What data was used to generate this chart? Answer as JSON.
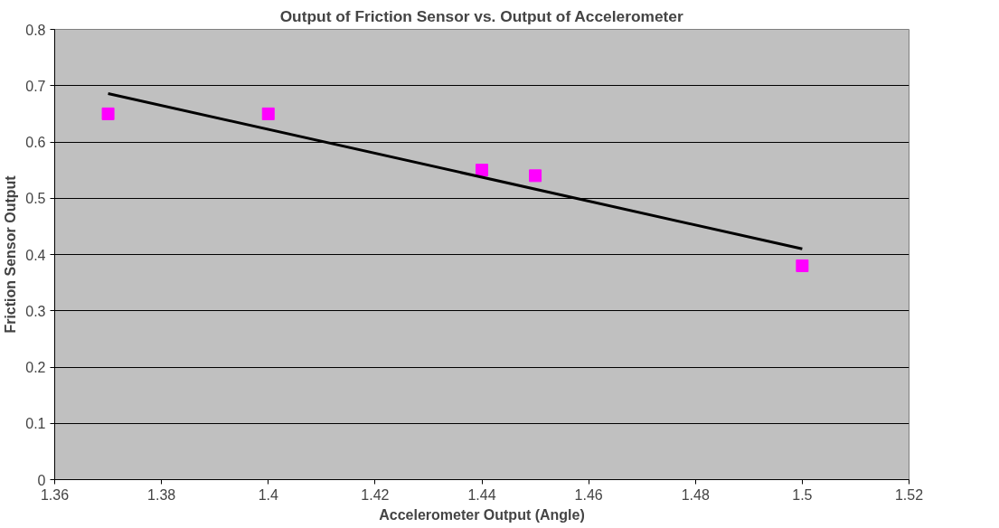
{
  "chart_data": {
    "type": "scatter",
    "title": "Output of Friction Sensor vs. Output of Accelerometer",
    "xlabel": "Accelerometer Output (Angle)",
    "ylabel": "Friction Sensor Output",
    "series": [
      {
        "color": "#ff00ff",
        "marker": "square",
        "x": [
          1.37,
          1.4,
          1.44,
          1.45,
          1.5
        ],
        "values": [
          0.65,
          0.65,
          0.55,
          0.54,
          0.38
        ]
      },
      {
        "type": "line",
        "color": "#000000",
        "marker": "none",
        "x": [
          1.37,
          1.5
        ],
        "values": [
          0.686,
          0.41
        ]
      }
    ],
    "xlim": [
      1.36,
      1.52
    ],
    "xticks": [
      1.36,
      1.38,
      1.4,
      1.42,
      1.44,
      1.46,
      1.48,
      1.5,
      1.52
    ],
    "ylim": [
      0,
      0.8
    ],
    "yticks": [
      0,
      0.1,
      0.2,
      0.3,
      0.4,
      0.5,
      0.6,
      0.7,
      0.8
    ],
    "grid": "y"
  }
}
